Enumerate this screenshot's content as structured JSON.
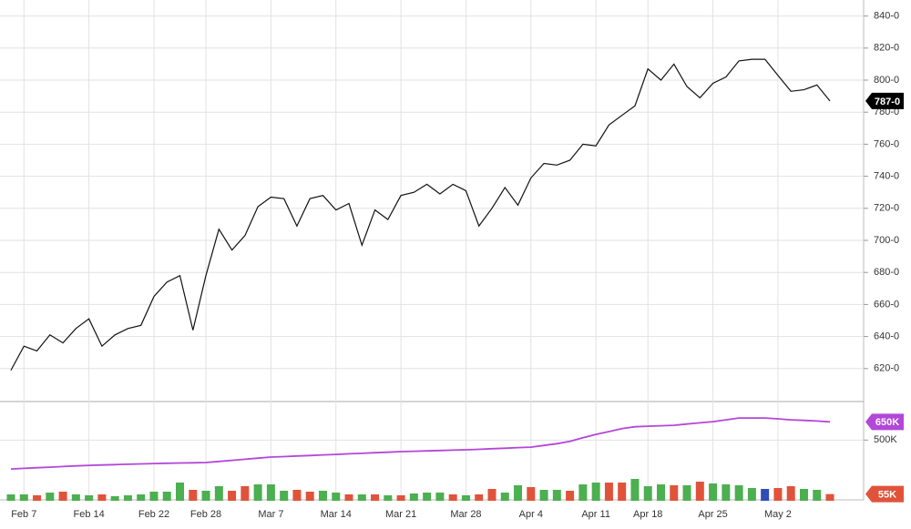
{
  "chart_data": [
    {
      "type": "line",
      "ylim": [
        600,
        850
      ],
      "yticks": [
        {
          "value": 620,
          "label": "620-0"
        },
        {
          "value": 640,
          "label": "640-0"
        },
        {
          "value": 660,
          "label": "660-0"
        },
        {
          "value": 680,
          "label": "680-0"
        },
        {
          "value": 700,
          "label": "700-0"
        },
        {
          "value": 720,
          "label": "720-0"
        },
        {
          "value": 740,
          "label": "740-0"
        },
        {
          "value": 760,
          "label": "760-0"
        },
        {
          "value": 780,
          "label": "780-0"
        },
        {
          "value": 800,
          "label": "800-0"
        },
        {
          "value": 820,
          "label": "820-0"
        },
        {
          "value": 840,
          "label": "840-0"
        }
      ],
      "grid": true,
      "series": [
        {
          "color": "#111111",
          "last_label": "787-0",
          "values": [
            619,
            634,
            631,
            641,
            636,
            645,
            651,
            634,
            641,
            645,
            647,
            665,
            674,
            678,
            644,
            678,
            707,
            694,
            703,
            721,
            727,
            726,
            709,
            726,
            728,
            719,
            723,
            697,
            719,
            713,
            728,
            730,
            735,
            729,
            735,
            731,
            709,
            720,
            733,
            722,
            739,
            748,
            747,
            750,
            760,
            759,
            772,
            778,
            784,
            807,
            800,
            810,
            796,
            789,
            798,
            802,
            812,
            813,
            813,
            803,
            793,
            794,
            797,
            787
          ]
        }
      ]
    },
    {
      "type": "bar",
      "categories": [
        null,
        "Feb 7",
        null,
        null,
        null,
        null,
        "Feb 14",
        null,
        null,
        null,
        null,
        "Feb 22",
        null,
        null,
        null,
        "Feb 28",
        null,
        null,
        null,
        null,
        "Mar 7",
        null,
        null,
        null,
        null,
        "Mar 14",
        null,
        null,
        null,
        null,
        "Mar 21",
        null,
        null,
        null,
        null,
        "Mar 28",
        null,
        null,
        null,
        null,
        "Apr 4",
        null,
        null,
        null,
        null,
        "Apr 11",
        null,
        null,
        null,
        "Apr 18",
        null,
        null,
        null,
        null,
        "Apr 25",
        null,
        null,
        null,
        null,
        "May 2",
        null,
        null,
        null,
        null
      ],
      "ylim": [
        0,
        810000
      ],
      "yticks": [
        {
          "value": 500000,
          "label": "500K"
        }
      ],
      "grid": true,
      "series": [
        {
          "type": "bar",
          "last_label": "55K",
          "colors": [
            "#4caf50",
            "#4caf50",
            "#e0533a",
            "#4caf50",
            "#e0533a",
            "#4caf50",
            "#4caf50",
            "#e0533a",
            "#4caf50",
            "#4caf50",
            "#4caf50",
            "#4caf50",
            "#4caf50",
            "#4caf50",
            "#e0533a",
            "#4caf50",
            "#4caf50",
            "#e0533a",
            "#e0533a",
            "#4caf50",
            "#4caf50",
            "#4caf50",
            "#e0533a",
            "#e0533a",
            "#4caf50",
            "#4caf50",
            "#e0533a",
            "#4caf50",
            "#e0533a",
            "#4caf50",
            "#e0533a",
            "#4caf50",
            "#4caf50",
            "#4caf50",
            "#e0533a",
            "#4caf50",
            "#e0533a",
            "#e0533a",
            "#4caf50",
            "#4caf50",
            "#e0533a",
            "#4caf50",
            "#4caf50",
            "#e0533a",
            "#4caf50",
            "#4caf50",
            "#e0533a",
            "#e0533a",
            "#4caf50",
            "#4caf50",
            "#4caf50",
            "#e0533a",
            "#4caf50",
            "#e0533a",
            "#4caf50",
            "#4caf50",
            "#4caf50",
            "#4caf50",
            "#2e4db8",
            "#e0533a",
            "#e0533a",
            "#4caf50",
            "#4caf50",
            "#e0533a"
          ],
          "values": [
            52500,
            52500,
            45000,
            67500,
            75000,
            52500,
            45000,
            52500,
            37500,
            45000,
            52500,
            75000,
            75000,
            150000,
            90000,
            82500,
            120000,
            82500,
            120000,
            135000,
            135000,
            82500,
            90000,
            75000,
            82500,
            67500,
            52500,
            52500,
            52500,
            45000,
            45000,
            60000,
            67500,
            67500,
            52500,
            45000,
            52500,
            97500,
            67500,
            127500,
            112500,
            90000,
            90000,
            82500,
            135000,
            150000,
            150000,
            150000,
            180000,
            120000,
            135000,
            127500,
            127500,
            157500,
            142500,
            135000,
            127500,
            105000,
            97500,
            105000,
            120000,
            97500,
            90000,
            55000
          ]
        },
        {
          "type": "line",
          "color": "#b347d9",
          "last_label": "650K",
          "values": [
            262000,
            267000,
            272000,
            277000,
            282000,
            287000,
            292000,
            295000,
            298000,
            301000,
            304000,
            307000,
            309000,
            311000,
            313000,
            315000,
            324000,
            333000,
            342000,
            351000,
            360000,
            364000,
            369000,
            373000,
            378000,
            382000,
            387000,
            391000,
            396000,
            400000,
            405000,
            408000,
            411000,
            414000,
            417000,
            420000,
            424000,
            429000,
            433000,
            438000,
            442000,
            456000,
            470000,
            490000,
            520000,
            547000,
            570000,
            595000,
            610000,
            614000,
            618000,
            622000,
            632000,
            642000,
            652000,
            667000,
            682000,
            682000,
            682000,
            675000,
            667000,
            662000,
            657000,
            650000
          ]
        }
      ]
    }
  ]
}
